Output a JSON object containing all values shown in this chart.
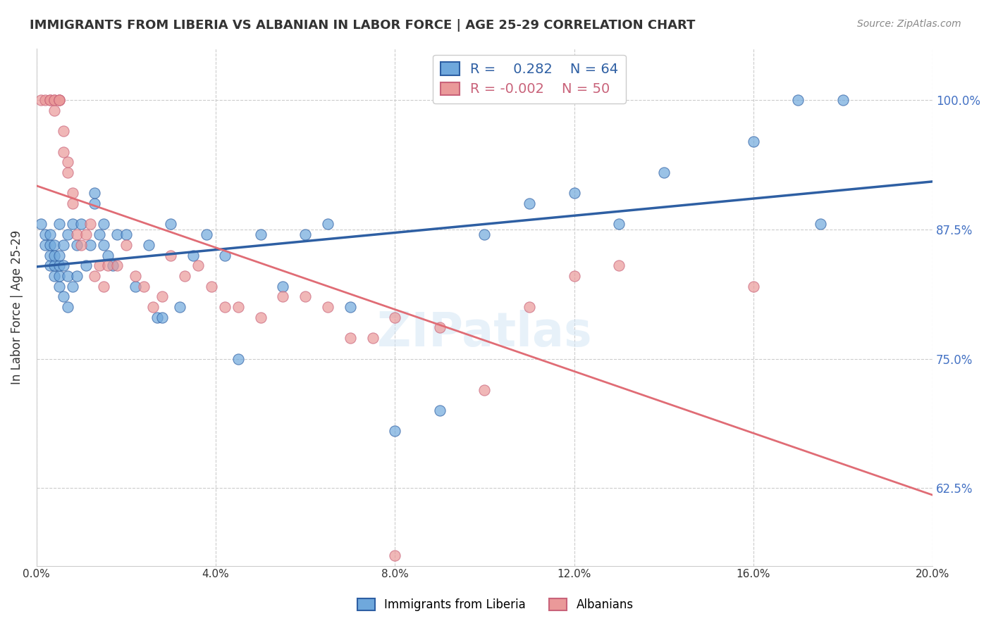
{
  "title": "IMMIGRANTS FROM LIBERIA VS ALBANIAN IN LABOR FORCE | AGE 25-29 CORRELATION CHART",
  "source": "Source: ZipAtlas.com",
  "xlabel_bottom": "",
  "ylabel": "In Labor Force | Age 25-29",
  "xlim": [
    0.0,
    0.2
  ],
  "ylim": [
    0.55,
    1.05
  ],
  "xticks": [
    0.0,
    0.04,
    0.08,
    0.12,
    0.16,
    0.2
  ],
  "xtick_labels": [
    "0.0%",
    "4.0%",
    "8.0%",
    "12.0%",
    "16.0%",
    "20.0%"
  ],
  "yticks": [
    0.625,
    0.75,
    0.875,
    1.0
  ],
  "ytick_labels": [
    "62.5%",
    "75.0%",
    "87.5%",
    "100.0%"
  ],
  "ytick_color": "#4472c4",
  "grid_color": "#cccccc",
  "blue_color": "#6fa8dc",
  "pink_color": "#ea9999",
  "blue_line_color": "#2e5fa3",
  "pink_line_color": "#e06c75",
  "blue_r": 0.282,
  "blue_n": 64,
  "pink_r": -0.002,
  "pink_n": 50,
  "legend1_label": "Immigrants from Liberia",
  "legend2_label": "Albanians",
  "watermark": "ZIPatlas",
  "blue_x": [
    0.001,
    0.002,
    0.002,
    0.003,
    0.003,
    0.003,
    0.003,
    0.004,
    0.004,
    0.004,
    0.004,
    0.005,
    0.005,
    0.005,
    0.005,
    0.005,
    0.006,
    0.006,
    0.006,
    0.007,
    0.007,
    0.007,
    0.008,
    0.008,
    0.009,
    0.009,
    0.01,
    0.011,
    0.012,
    0.013,
    0.013,
    0.014,
    0.015,
    0.015,
    0.016,
    0.017,
    0.018,
    0.02,
    0.022,
    0.025,
    0.027,
    0.028,
    0.03,
    0.032,
    0.035,
    0.038,
    0.042,
    0.045,
    0.05,
    0.055,
    0.06,
    0.065,
    0.07,
    0.08,
    0.09,
    0.1,
    0.11,
    0.12,
    0.13,
    0.14,
    0.16,
    0.17,
    0.175,
    0.18
  ],
  "blue_y": [
    0.88,
    0.86,
    0.87,
    0.84,
    0.85,
    0.86,
    0.87,
    0.83,
    0.84,
    0.85,
    0.86,
    0.82,
    0.83,
    0.84,
    0.85,
    0.88,
    0.81,
    0.84,
    0.86,
    0.8,
    0.83,
    0.87,
    0.82,
    0.88,
    0.83,
    0.86,
    0.88,
    0.84,
    0.86,
    0.9,
    0.91,
    0.87,
    0.86,
    0.88,
    0.85,
    0.84,
    0.87,
    0.87,
    0.82,
    0.86,
    0.79,
    0.79,
    0.88,
    0.8,
    0.85,
    0.87,
    0.85,
    0.75,
    0.87,
    0.82,
    0.87,
    0.88,
    0.8,
    0.68,
    0.7,
    0.87,
    0.9,
    0.91,
    0.88,
    0.93,
    0.96,
    1.0,
    0.88,
    1.0
  ],
  "pink_x": [
    0.001,
    0.002,
    0.003,
    0.003,
    0.004,
    0.004,
    0.004,
    0.005,
    0.005,
    0.005,
    0.006,
    0.006,
    0.007,
    0.007,
    0.008,
    0.008,
    0.009,
    0.01,
    0.011,
    0.012,
    0.013,
    0.014,
    0.015,
    0.016,
    0.018,
    0.02,
    0.022,
    0.024,
    0.026,
    0.028,
    0.03,
    0.033,
    0.036,
    0.039,
    0.042,
    0.045,
    0.05,
    0.055,
    0.06,
    0.065,
    0.07,
    0.075,
    0.08,
    0.09,
    0.1,
    0.11,
    0.12,
    0.13,
    0.16,
    0.08
  ],
  "pink_y": [
    1.0,
    1.0,
    1.0,
    1.0,
    1.0,
    1.0,
    0.99,
    1.0,
    1.0,
    1.0,
    0.95,
    0.97,
    0.93,
    0.94,
    0.9,
    0.91,
    0.87,
    0.86,
    0.87,
    0.88,
    0.83,
    0.84,
    0.82,
    0.84,
    0.84,
    0.86,
    0.83,
    0.82,
    0.8,
    0.81,
    0.85,
    0.83,
    0.84,
    0.82,
    0.8,
    0.8,
    0.79,
    0.81,
    0.81,
    0.8,
    0.77,
    0.77,
    0.79,
    0.78,
    0.72,
    0.8,
    0.83,
    0.84,
    0.82,
    0.56
  ]
}
